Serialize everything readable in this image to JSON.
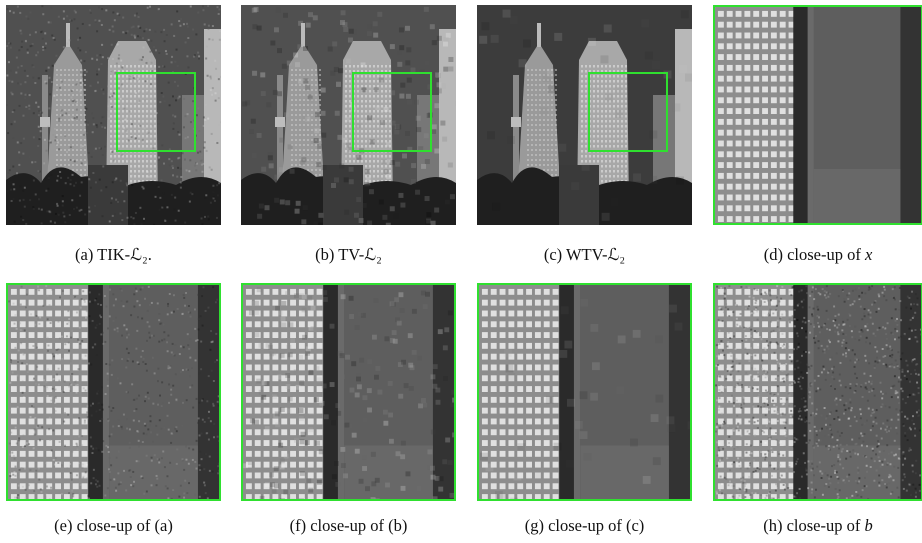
{
  "figure": {
    "panels": [
      {
        "id": "a",
        "caption": "(a) TIK-ℒ₂.",
        "kind": "full",
        "noise": "grain",
        "accent": "#2fe02f"
      },
      {
        "id": "b",
        "caption": "(b) TV-ℒ₂",
        "kind": "full",
        "noise": "blocky",
        "accent": "#2fe02f"
      },
      {
        "id": "c",
        "caption": "(c) WTV-ℒ₂",
        "kind": "full",
        "noise": "smooth",
        "accent": "#2fe02f"
      },
      {
        "id": "d",
        "caption_prefix": "(d) close-up of ",
        "caption_var": "x",
        "kind": "closeup",
        "noise": "clean",
        "accent": "#2fe02f"
      },
      {
        "id": "e",
        "caption": "(e) close-up of (a)",
        "kind": "closeup",
        "noise": "grain",
        "accent": "#2fe02f"
      },
      {
        "id": "f",
        "caption": "(f) close-up of (b)",
        "kind": "closeup",
        "noise": "blocky",
        "accent": "#2fe02f"
      },
      {
        "id": "g",
        "caption": "(g) close-up of (c)",
        "kind": "closeup",
        "noise": "smooth",
        "accent": "#2fe02f"
      },
      {
        "id": "h",
        "caption_prefix": "(h) close-up of ",
        "caption_var": "b",
        "kind": "closeup",
        "noise": "heavy",
        "accent": "#2fe02f"
      }
    ]
  }
}
